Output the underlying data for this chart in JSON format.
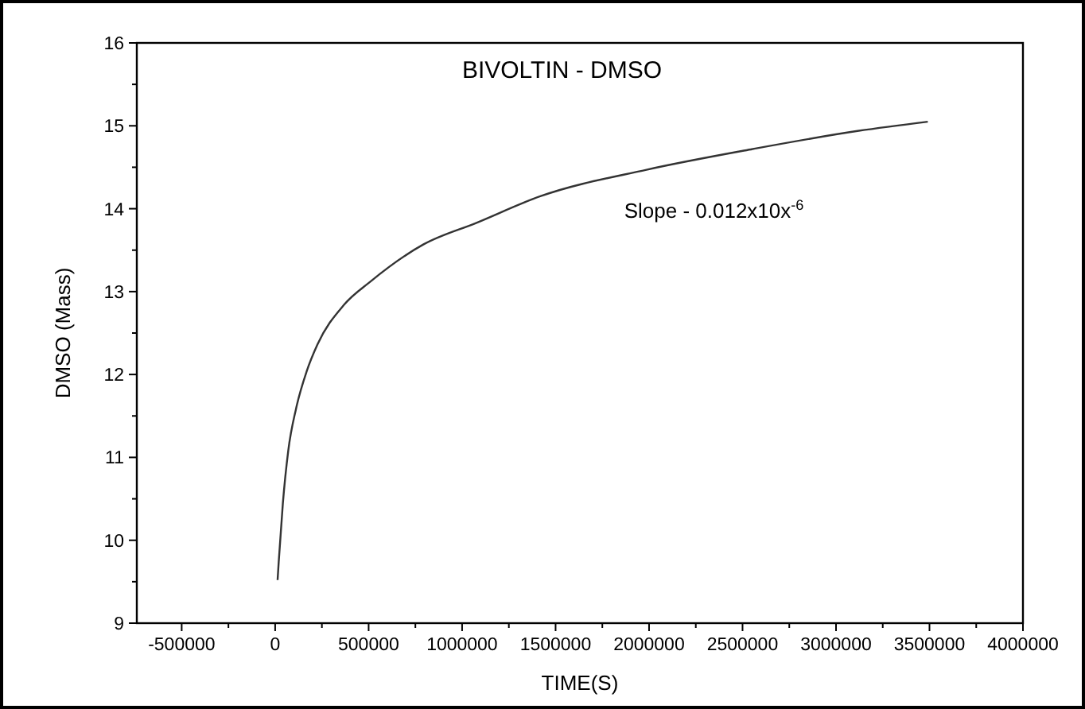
{
  "chart_data": {
    "type": "line",
    "title": "BIVOLTIN - DMSO",
    "xlabel": "TIME(S)",
    "ylabel": "DMSO (Mass)",
    "annotations": [
      "Slope - 0.012x10x$^{-6}$"
    ],
    "series": [
      {
        "color": "#333333",
        "x": [
          13000,
          19000,
          41000,
          70000,
          112000,
          169000,
          226000,
          368000,
          509000,
          794000,
          1077000,
          1418000,
          1986000,
          2554000,
          3122000,
          3491000
        ],
        "values": [
          9.52,
          9.74,
          10.44,
          11.08,
          11.59,
          12.04,
          12.36,
          12.84,
          13.12,
          13.57,
          13.83,
          14.15,
          14.47,
          14.72,
          14.94,
          15.05
        ]
      }
    ],
    "xlim": [
      -740000,
      4000000
    ],
    "xticks": [
      -500000,
      {
        "value": -250000,
        "label": null
      },
      0,
      {
        "value": 250000,
        "label": null
      },
      500000,
      {
        "value": 750000,
        "label": null
      },
      1000000,
      {
        "value": 1250000,
        "label": null
      },
      1500000,
      {
        "value": 1750000,
        "label": null
      },
      2000000,
      {
        "value": 2250000,
        "label": null
      },
      2500000,
      {
        "value": 2750000,
        "label": null
      },
      3000000,
      {
        "value": 3250000,
        "label": null
      },
      3500000,
      {
        "value": 3750000,
        "label": null
      },
      4000000
    ],
    "ylim": [
      9,
      16
    ],
    "yticks": [
      9,
      {
        "value": 9.5,
        "label": null
      },
      10,
      {
        "value": 10.5,
        "label": null
      },
      11,
      {
        "value": 11.5,
        "label": null
      },
      12,
      {
        "value": 12.5,
        "label": null
      },
      13,
      {
        "value": 13.5,
        "label": null
      },
      14,
      {
        "value": 14.5,
        "label": null
      },
      15,
      {
        "value": 15.5,
        "label": null
      },
      16
    ],
    "grid": false,
    "marker": "none",
    "line_style": "solid"
  }
}
